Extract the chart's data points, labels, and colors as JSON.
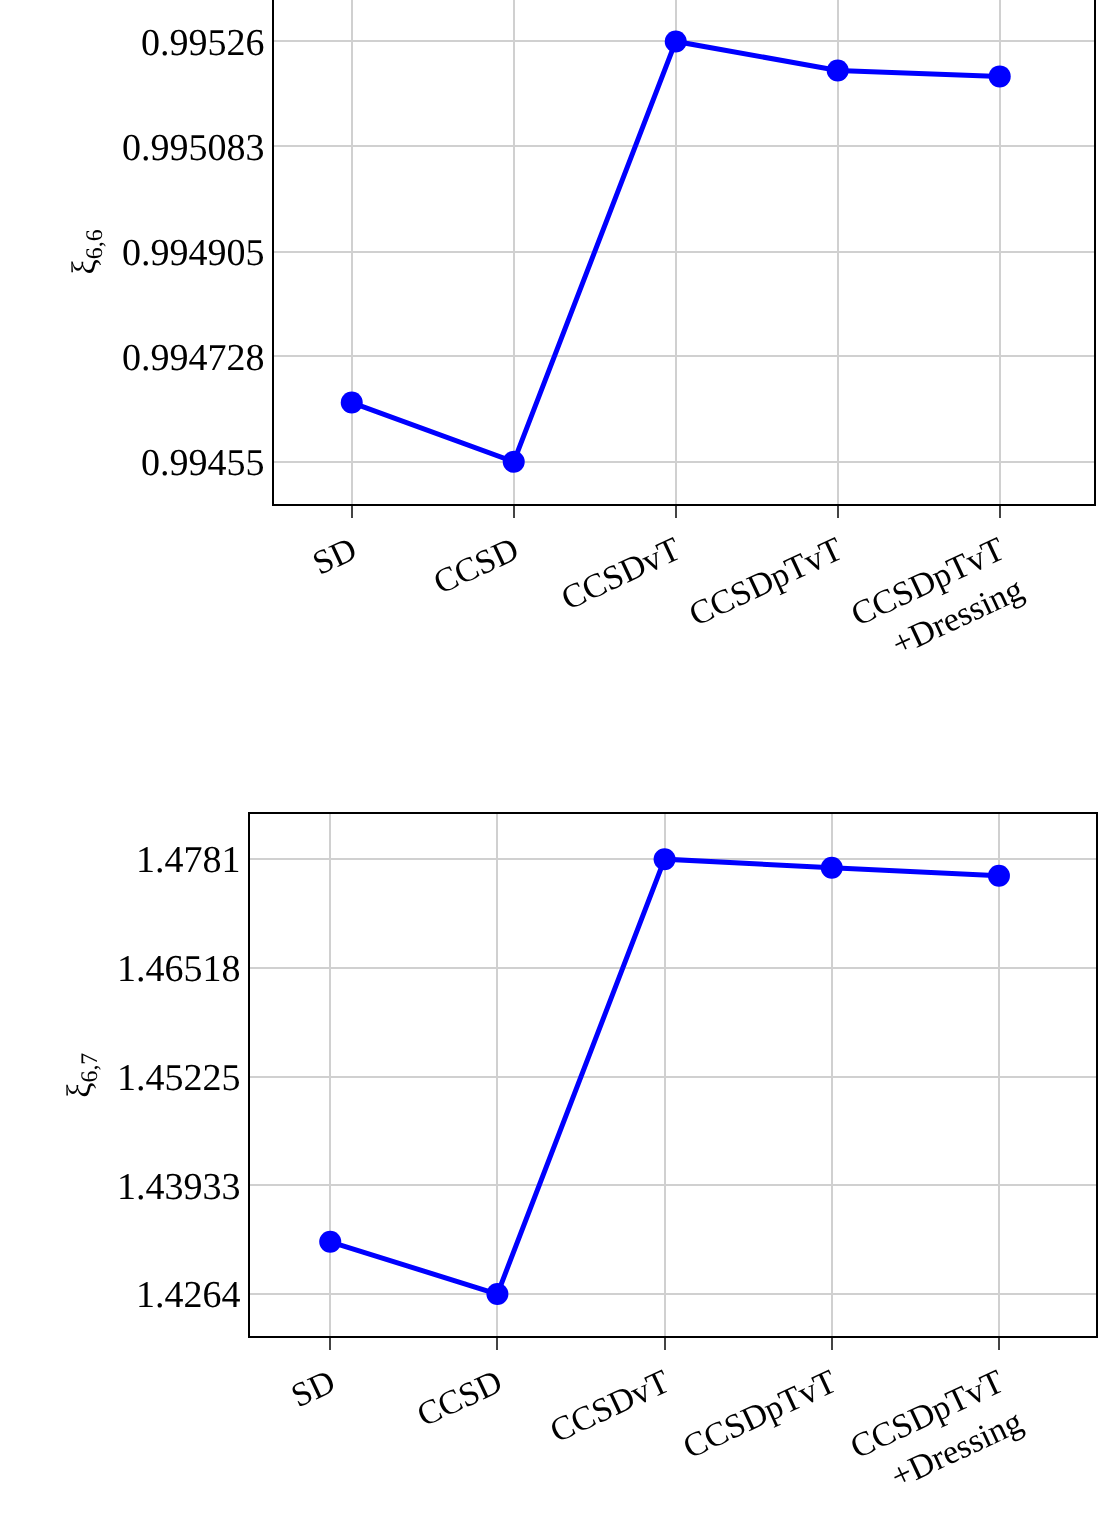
{
  "chart_data": [
    {
      "type": "line",
      "ylabel": "ξ$_{6,6}$",
      "categories": [
        "SD",
        "CCSD",
        "CCSDvT",
        "CCSDpTvT",
        "CCSDpTvT\n+Dressing"
      ],
      "series": [
        {
          "color": "#0000ff",
          "values": [
            0.99465,
            0.99455,
            0.99526,
            0.995211,
            0.995201
          ]
        }
      ],
      "ylim": [
        0.994479,
        0.99533
      ],
      "yticks": [
        0.99455,
        0.994728,
        0.994905,
        0.995083,
        0.99526
      ],
      "grid": true,
      "marker": "circle",
      "line_style": "solid"
    },
    {
      "type": "line",
      "ylabel": "ξ$_{6,7}$",
      "categories": [
        "SD",
        "CCSD",
        "CCSDvT",
        "CCSDpTvT",
        "CCSDpTvT\n+Dressing"
      ],
      "series": [
        {
          "color": "#0000ff",
          "values": [
            1.43261,
            1.4264,
            1.4781,
            1.47708,
            1.47614
          ]
        }
      ],
      "ylim": [
        1.42138,
        1.48346
      ],
      "yticks": [
        1.4264,
        1.43933,
        1.45225,
        1.46518,
        1.4781
      ],
      "grid": true,
      "marker": "circle",
      "line_style": "solid"
    }
  ]
}
